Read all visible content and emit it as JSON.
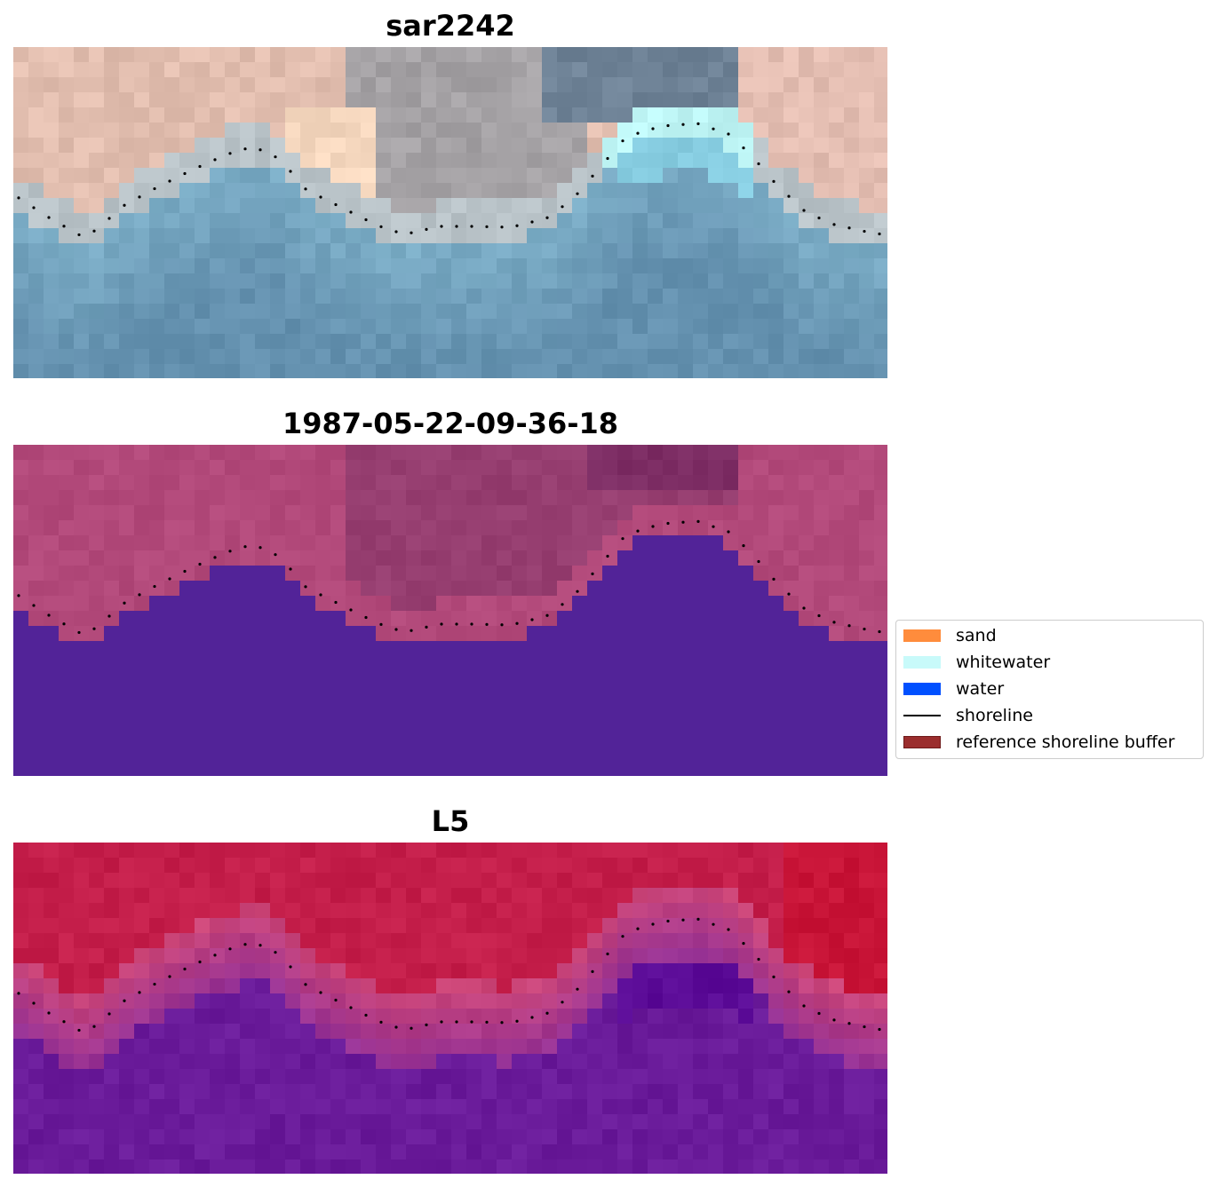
{
  "panels": [
    {
      "title": "sar2242",
      "kind": "rgb"
    },
    {
      "title": "1987-05-22-09-36-18",
      "kind": "classified"
    },
    {
      "title": "L5",
      "kind": "probability"
    }
  ],
  "legend": {
    "items": [
      {
        "label": "sand",
        "type": "patch",
        "color": "#ff8c3c"
      },
      {
        "label": "whitewater",
        "type": "patch",
        "color": "#c8fafa"
      },
      {
        "label": "water",
        "type": "patch",
        "color": "#0050ff"
      },
      {
        "label": "shoreline",
        "type": "line",
        "color": "#000000"
      },
      {
        "label": "reference shoreline buffer",
        "type": "patch",
        "color": "#9b2d2d",
        "edge": "#6e1a1a"
      }
    ]
  },
  "colors": {
    "class_water": "#522398",
    "class_land": "#b2497a",
    "prob_land": "#c41e4a",
    "prob_water": "#6a1b9a",
    "shoreline": "#000000"
  }
}
